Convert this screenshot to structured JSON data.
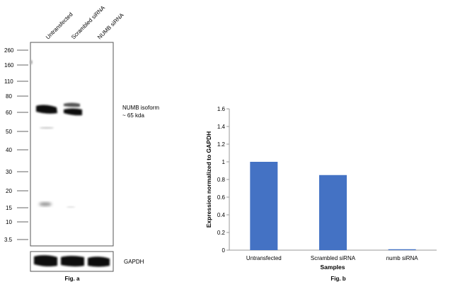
{
  "blot": {
    "lanes": [
      "Untransfected",
      "Scrambled siRNA",
      "NUMB siRNA"
    ],
    "markers": [
      "260",
      "160",
      "110",
      "80",
      "60",
      "50",
      "40",
      "30",
      "20",
      "15",
      "10",
      "3.5"
    ],
    "band_label_line1": "NUMB isoform",
    "band_label_line2": "~ 65 kda",
    "loading_label": "GAPDH",
    "caption": "Fig. a"
  },
  "chart_data": {
    "type": "bar",
    "categories": [
      "Untransfected",
      "Scrambled siRNA",
      "numb siRNA"
    ],
    "values": [
      1.0,
      0.85,
      0.01
    ],
    "title": "",
    "xlabel": "Samples",
    "ylabel": "Expression normalized to GAPDH",
    "ylim": [
      0,
      1.6
    ],
    "yticks": [
      "0",
      "0.2",
      "0.4",
      "0.6",
      "0.8",
      "1",
      "1.2",
      "1.4",
      "1.6"
    ],
    "bar_color": "#4472c4",
    "grid": false,
    "legend": "none",
    "caption": "Fig. b"
  }
}
